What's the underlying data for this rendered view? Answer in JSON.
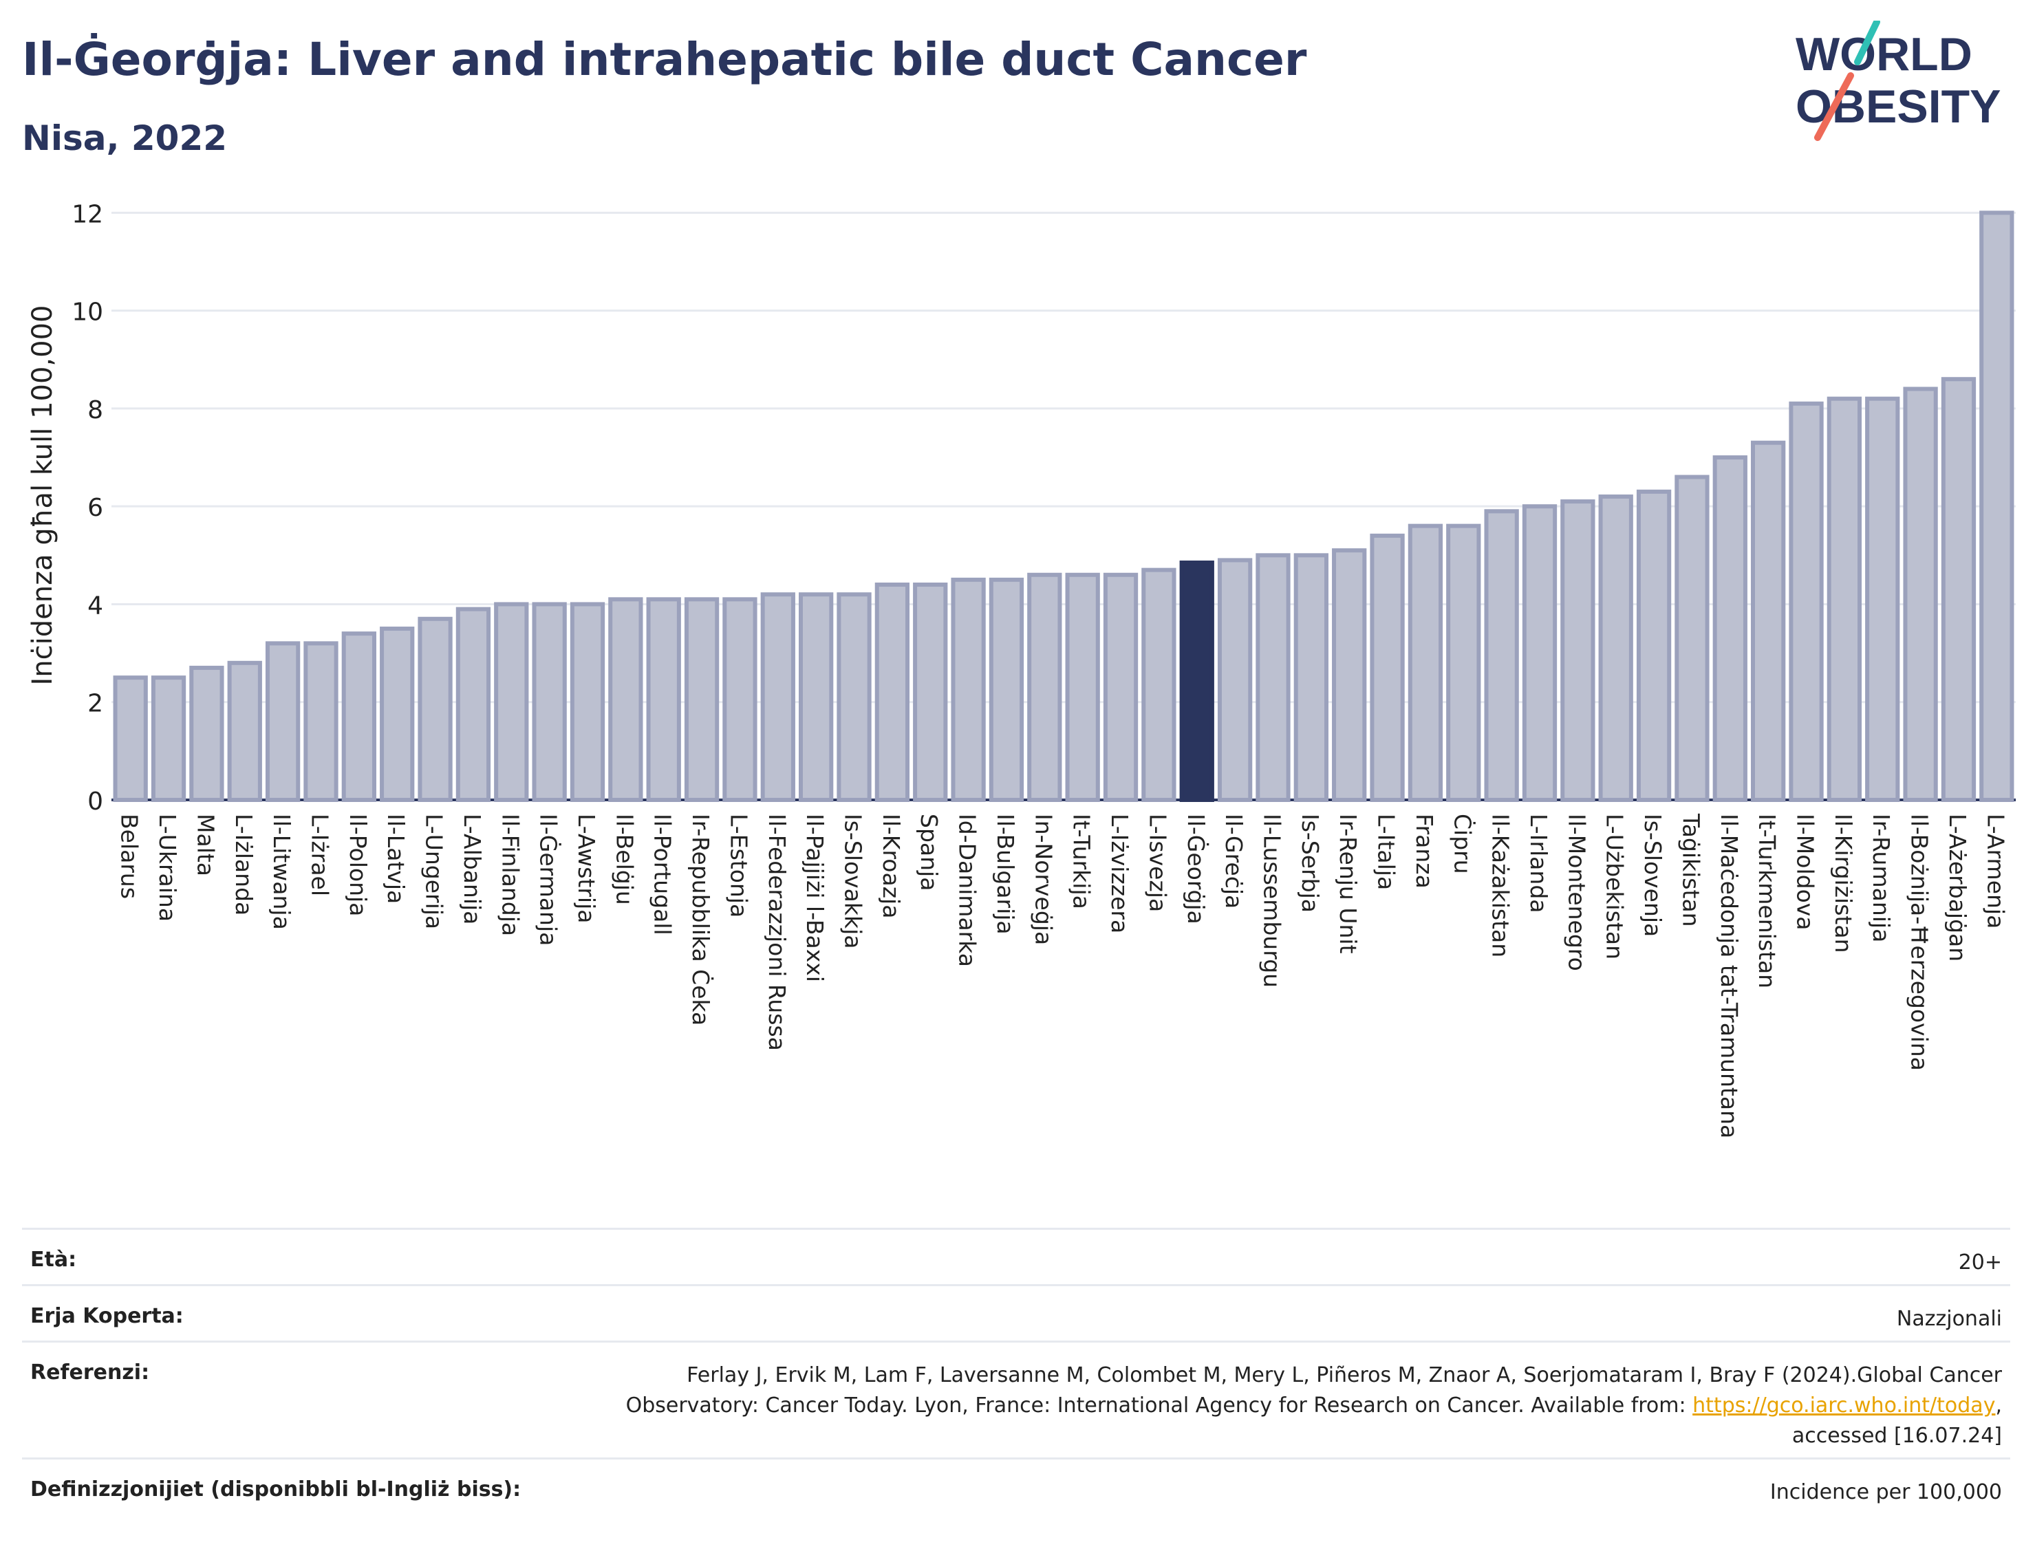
{
  "title": "Il-Ġeorġja: Liver and intrahepatic bile duct Cancer",
  "subtitle": "Nisa, 2022",
  "logo": {
    "line1": "WORLD",
    "line2": "OBESITY"
  },
  "colors": {
    "bar": "#bcc0d0",
    "bar_stroke": "#9ba1bc",
    "highlight": "#2a355e",
    "grid": "#e6e9ef",
    "axis": "#2a355e",
    "text": "#2a355e",
    "link": "#e8a200"
  },
  "chart_data": {
    "type": "bar",
    "ylabel": "Inċidenza għal kull 100,000",
    "ylim": [
      0,
      12.3
    ],
    "yticks": [
      0,
      2,
      4,
      6,
      8,
      10,
      12
    ],
    "grid": true,
    "highlight": "Il-Ġeorġja",
    "categories": [
      "Belarus",
      "L-Ukraina",
      "Malta",
      "L-Iżlanda",
      "Il-Litwanja",
      "L-Iżrael",
      "Il-Polonja",
      "Il-Latvja",
      "L-Ungerija",
      "L-Albanija",
      "Il-Finlandja",
      "Il-Ġermanja",
      "L-Awstrija",
      "Il-Belġju",
      "Il-Portugall",
      "Ir-Repubblika Ċeka",
      "L-Estonja",
      "Il-Federazzjoni Russa",
      "Il-Pajjiżi l-Baxxi",
      "Is-Slovakkja",
      "Il-Kroazja",
      "Spanja",
      "Id-Danimarka",
      "Il-Bulgarija",
      "In-Norveġja",
      "It-Turkija",
      "L-Iżvizzera",
      "L-Isvezja",
      "Il-Ġeorġja",
      "Il-Greċja",
      "Il-Lussemburgu",
      "Is-Serbja",
      "Ir-Renju Unit",
      "L-Italja",
      "Franza",
      "Ċipru",
      "Il-Każakistan",
      "L-Irlanda",
      "Il-Montenegro",
      "L-Użbekistan",
      "Is-Slovenja",
      "Taġikistan",
      "Il-Maċedonja tat-Tramuntana",
      "It-Turkmenistan",
      "Il-Moldova",
      "Il-Kirgiżistan",
      "Ir-Rumanija",
      "Il-Bożnija-Ħerzegovina",
      "L-Ażerbajġan",
      "L-Armenja"
    ],
    "values": [
      2.5,
      2.5,
      2.7,
      2.8,
      3.2,
      3.2,
      3.4,
      3.5,
      3.7,
      3.9,
      4.0,
      4.0,
      4.0,
      4.1,
      4.1,
      4.1,
      4.1,
      4.2,
      4.2,
      4.2,
      4.4,
      4.4,
      4.5,
      4.5,
      4.6,
      4.6,
      4.6,
      4.7,
      4.85,
      4.9,
      5.0,
      5.0,
      5.1,
      5.4,
      5.6,
      5.6,
      5.9,
      6.0,
      6.1,
      6.2,
      6.3,
      6.6,
      7.0,
      7.3,
      8.1,
      8.2,
      8.2,
      8.4,
      8.6,
      12.0
    ]
  },
  "meta": {
    "age_label": "Età:",
    "age_value": "20+",
    "coverage_label": "Erja Koperta:",
    "coverage_value": "Nazzjonali",
    "refs_label": "Referenzi:",
    "refs_line1": "Ferlay J, Ervik M, Lam F, Laversanne M, Colombet M, Mery L, Piñeros M, Znaor A, Soerjomataram I, Bray F (2024).Global Cancer",
    "refs_line2a": "Observatory: Cancer Today. Lyon, France: International Agency for Research on Cancer. Available from: ",
    "refs_link": "https://gco.iarc.who.int/today",
    "refs_line2b": ",",
    "refs_line3": "accessed [16.07.24]",
    "defs_label": "Definizzjonijiet (disponibbli bl-Ingliż biss):",
    "defs_value": "Incidence per 100,000"
  }
}
